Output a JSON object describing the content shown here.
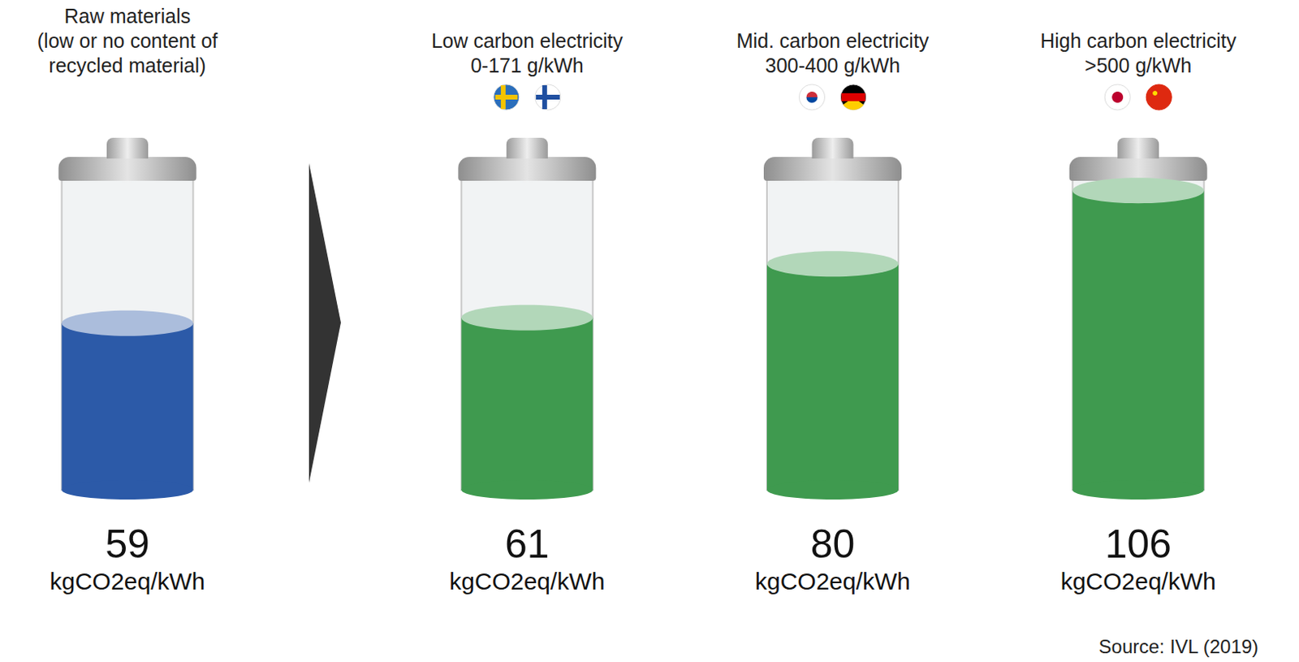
{
  "chart_data": {
    "type": "bar",
    "categories": [
      "Raw materials",
      "Low carbon electricity",
      "Mid. carbon electricity",
      "High carbon electricity"
    ],
    "category_notes": [
      "(low or no content of recycled material)",
      "0-171 g/kWh",
      "300-400 g/kWh",
      ">500 g/kWh"
    ],
    "values": [
      59,
      61,
      80,
      106
    ],
    "unit": "kgCO2eq/kWh",
    "colors": [
      "#2c5aa8",
      "#3f9a4f",
      "#3f9a4f",
      "#3f9a4f"
    ],
    "ylim": [
      0,
      110
    ],
    "tick_labels": false,
    "data_labels": true,
    "source": "Source: IVL (2019)"
  }
}
